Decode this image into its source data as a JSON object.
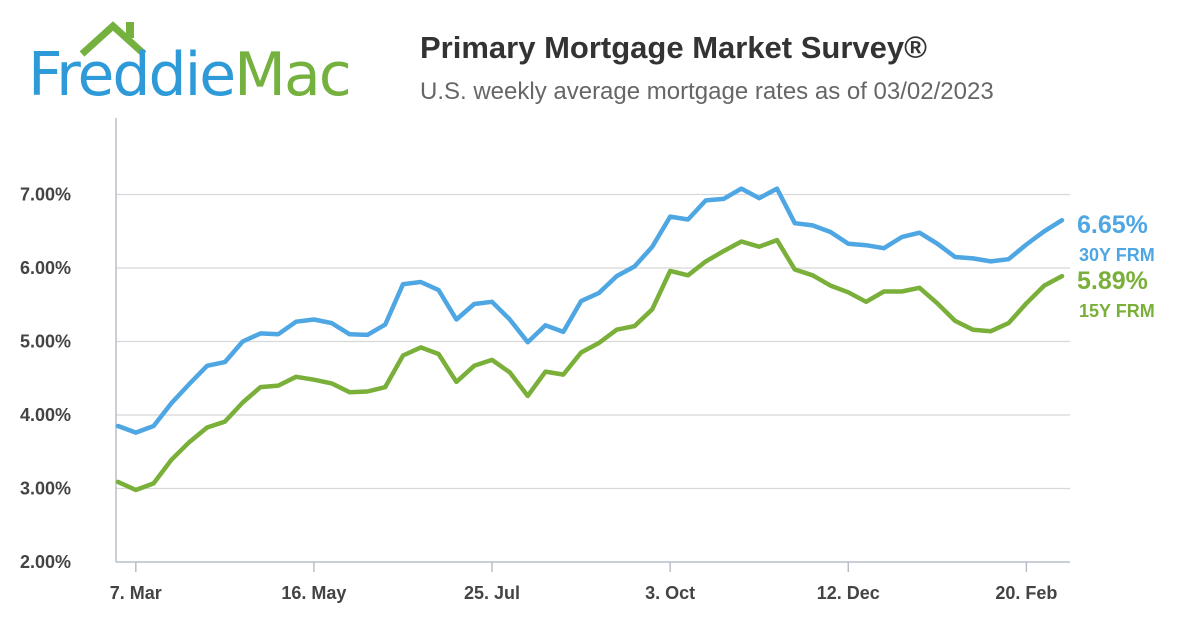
{
  "header": {
    "logo": {
      "word1": "Freddie",
      "word2": "Mac"
    },
    "title": "Primary Mortgage Market Survey®",
    "subtitle": "U.S. weekly average mortgage rates as of 03/02/2023"
  },
  "colors": {
    "series_30y": "#4ea6e3",
    "series_15y": "#7aaf3a",
    "grid": "#d8d8d8",
    "axis": "#b8bec8"
  },
  "chart_data": {
    "type": "line",
    "title": "Primary Mortgage Market Survey®",
    "subtitle": "U.S. weekly average mortgage rates as of 03/02/2023",
    "ylim": [
      2.0,
      7.25
    ],
    "y_ticks": [
      2,
      3,
      4,
      5,
      6,
      7
    ],
    "y_tick_labels": [
      "2.00%",
      "3.00%",
      "4.00%",
      "5.00%",
      "6.00%",
      "7.00%"
    ],
    "x_tick_labels": [
      {
        "label": "7. Mar",
        "week": 1
      },
      {
        "label": "16. May",
        "week": 11
      },
      {
        "label": "25. Jul",
        "week": 21
      },
      {
        "label": "3. Oct",
        "week": 31
      },
      {
        "label": "12. Dec",
        "week": 41
      },
      {
        "label": "20. Feb",
        "week": 51
      }
    ],
    "grid": true,
    "series": [
      {
        "name": "30Y FRM",
        "end_label": "6.65%",
        "values": [
          3.85,
          3.76,
          3.85,
          4.16,
          4.42,
          4.67,
          4.72,
          5.0,
          5.11,
          5.1,
          5.27,
          5.3,
          5.25,
          5.1,
          5.09,
          5.23,
          5.78,
          5.81,
          5.7,
          5.3,
          5.51,
          5.54,
          5.3,
          4.99,
          5.22,
          5.13,
          5.55,
          5.66,
          5.89,
          6.02,
          6.29,
          6.7,
          6.66,
          6.92,
          6.94,
          7.08,
          6.95,
          7.08,
          6.61,
          6.58,
          6.49,
          6.33,
          6.31,
          6.27,
          6.42,
          6.48,
          6.33,
          6.15,
          6.13,
          6.09,
          6.12,
          6.32,
          6.5,
          6.65
        ]
      },
      {
        "name": "15Y FRM",
        "end_label": "5.89%",
        "values": [
          3.09,
          2.98,
          3.07,
          3.39,
          3.63,
          3.83,
          3.91,
          4.17,
          4.38,
          4.4,
          4.52,
          4.48,
          4.43,
          4.31,
          4.32,
          4.38,
          4.81,
          4.92,
          4.83,
          4.45,
          4.67,
          4.75,
          4.58,
          4.26,
          4.59,
          4.55,
          4.85,
          4.98,
          5.16,
          5.21,
          5.44,
          5.96,
          5.9,
          6.09,
          6.23,
          6.36,
          6.29,
          6.38,
          5.98,
          5.9,
          5.76,
          5.67,
          5.54,
          5.68,
          5.68,
          5.73,
          5.52,
          5.28,
          5.16,
          5.14,
          5.25,
          5.52,
          5.76,
          5.89
        ]
      }
    ]
  }
}
